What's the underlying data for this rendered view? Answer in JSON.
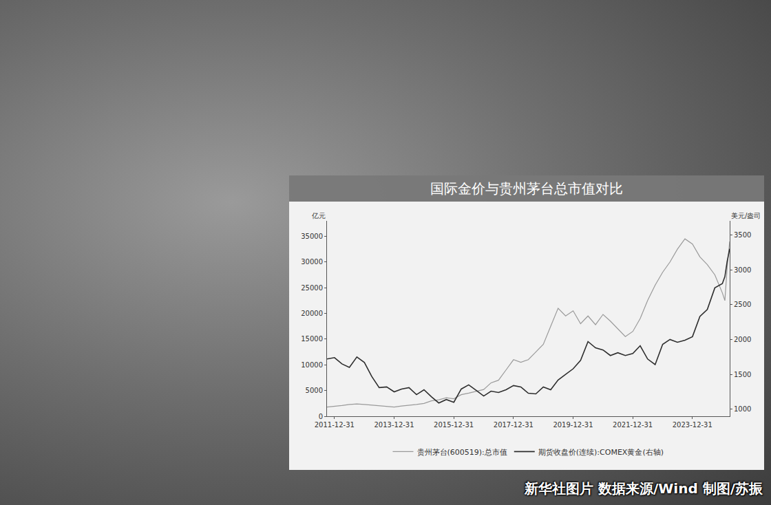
{
  "chart_data": {
    "type": "line",
    "title": "国际金价与贵州茅台总市值对比",
    "caption": "新华社图片 数据来源/Wind 制图/苏振",
    "ylabel": "亿元",
    "y2label": "美元/盎司",
    "x": [
      "2011-10",
      "2012-01",
      "2012-04",
      "2012-07",
      "2012-10",
      "2013-01",
      "2013-04",
      "2013-07",
      "2013-10",
      "2014-01",
      "2014-04",
      "2014-07",
      "2014-10",
      "2015-01",
      "2015-04",
      "2015-07",
      "2015-10",
      "2016-01",
      "2016-04",
      "2016-07",
      "2016-10",
      "2017-01",
      "2017-04",
      "2017-07",
      "2017-10",
      "2018-01",
      "2018-04",
      "2018-07",
      "2018-10",
      "2019-01",
      "2019-04",
      "2019-07",
      "2019-10",
      "2020-01",
      "2020-04",
      "2020-07",
      "2020-10",
      "2021-01",
      "2021-04",
      "2021-07",
      "2021-10",
      "2022-01",
      "2022-04",
      "2022-07",
      "2022-10",
      "2023-01",
      "2023-04",
      "2023-07",
      "2023-10",
      "2024-01",
      "2024-04",
      "2024-07",
      "2024-10",
      "2025-01",
      "2025-02",
      "2025-03",
      "2025-04"
    ],
    "series": [
      {
        "name": "贵州茅台(600519):总市值",
        "color": "#9a9a9a",
        "axis": "y",
        "values": [
          1800,
          1900,
          2100,
          2300,
          2400,
          2300,
          2200,
          2000,
          1900,
          1800,
          2000,
          2100,
          2300,
          2500,
          3000,
          3200,
          3600,
          3400,
          4200,
          4500,
          4800,
          5200,
          6500,
          7000,
          9000,
          11000,
          10500,
          11000,
          12500,
          14000,
          17500,
          21000,
          19500,
          20500,
          18000,
          19500,
          17800,
          19800,
          18500,
          17000,
          15500,
          16500,
          19000,
          22500,
          25500,
          28000,
          30000,
          32500,
          34500,
          33500,
          31000,
          29500,
          27500,
          24000,
          22500,
          29000,
          34000
        ]
      },
      {
        "name": "期货收盘价(连续):COMEX黄金(右轴)",
        "color": "#2e2e2e",
        "axis": "y2",
        "values": [
          1720,
          1740,
          1650,
          1600,
          1750,
          1670,
          1470,
          1310,
          1320,
          1250,
          1290,
          1310,
          1210,
          1280,
          1180,
          1090,
          1140,
          1100,
          1290,
          1350,
          1270,
          1190,
          1260,
          1240,
          1280,
          1340,
          1320,
          1230,
          1220,
          1320,
          1280,
          1420,
          1500,
          1580,
          1700,
          1970,
          1880,
          1850,
          1770,
          1810,
          1770,
          1800,
          1910,
          1720,
          1640,
          1930,
          2000,
          1960,
          1990,
          2040,
          2330,
          2430,
          2740,
          2800,
          2900,
          3120,
          3300
        ]
      }
    ],
    "xlim": [
      "2011-10",
      "2025-04"
    ],
    "xticks": [
      "2011-12-31",
      "2013-12-31",
      "2015-12-31",
      "2017-12-31",
      "2019-12-31",
      "2021-12-31",
      "2023-12-31"
    ],
    "ylim": [
      0,
      38000
    ],
    "yticks": [
      0,
      5000,
      10000,
      15000,
      20000,
      25000,
      30000,
      35000
    ],
    "y2lim": [
      900,
      3700
    ],
    "y2ticks": [
      1000,
      1500,
      2000,
      2500,
      3000,
      3500
    ],
    "grid": false,
    "legend": "bottom"
  }
}
